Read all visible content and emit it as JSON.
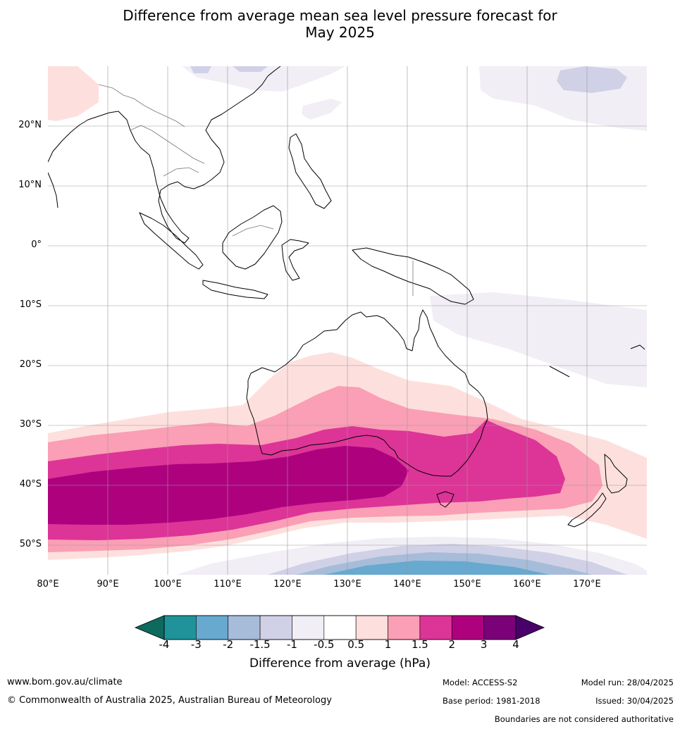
{
  "title_line1": "Difference from average mean sea level pressure forecast for",
  "title_line2": "May 2025",
  "lat_labels": [
    "20°N",
    "10°N",
    "0°",
    "10°S",
    "20°S",
    "30°S",
    "40°S",
    "50°S"
  ],
  "lon_labels": [
    "80°E",
    "90°E",
    "100°E",
    "110°E",
    "120°E",
    "130°E",
    "140°E",
    "150°E",
    "160°E",
    "170°E"
  ],
  "colorbar": {
    "colors": [
      "#0c6a5e",
      "#1f9399",
      "#67a9cf",
      "#a6bcd9",
      "#d0d1e6",
      "#f1eef6",
      "#ffffff",
      "#fde0dd",
      "#fa9fb5",
      "#dd3497",
      "#ae017e",
      "#7a0177",
      "#49006a"
    ],
    "ticks": [
      "-4",
      "-3",
      "-2",
      "-1.5",
      "-1",
      "-0.5",
      "0.5",
      "1",
      "1.5",
      "2",
      "3",
      "4"
    ],
    "title": "Difference from average (hPa)"
  },
  "footer": {
    "website": "www.bom.gov.au/climate",
    "copyright": "© Commonwealth of Australia 2025, Australian Bureau of Meteorology",
    "model": "Model: ACCESS-S2",
    "base_period": "Base period: 1981-2018",
    "model_run": "Model run: 28/04/2025",
    "issued": "Issued: 30/04/2025",
    "disclaimer": "Boundaries are not considered authoritative"
  }
}
